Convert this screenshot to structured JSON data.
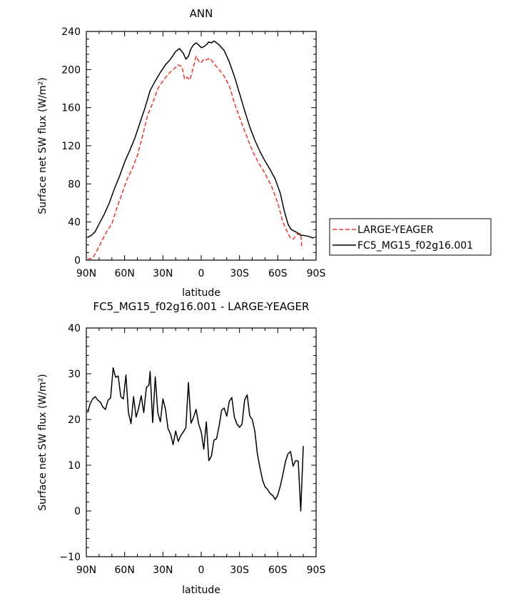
{
  "chart_data": [
    {
      "type": "line",
      "title": "ANN",
      "xlabel": "latitude",
      "ylabel": "Surface net SW flux (W/m²)",
      "xlim": [
        90,
        -90
      ],
      "ylim": [
        0,
        240
      ],
      "x_ticks": [
        90,
        60,
        30,
        0,
        -30,
        -60,
        -90
      ],
      "x_tick_labels": [
        "90N",
        "60N",
        "30N",
        "0",
        "30S",
        "60S",
        "90S"
      ],
      "y_ticks": [
        0,
        40,
        80,
        120,
        160,
        200,
        240
      ],
      "y_tick_labels": [
        "0",
        "40",
        "80",
        "120",
        "160",
        "200",
        "240"
      ],
      "legend_position": "right",
      "series": [
        {
          "name": "LARGE-YEAGER",
          "color": "#e8352b",
          "dash": "dashed",
          "x": [
            89,
            85,
            82,
            78,
            74,
            70,
            66,
            62,
            58,
            54,
            50,
            46,
            42,
            38,
            34,
            30,
            26,
            22,
            18,
            15,
            13,
            11,
            9,
            7,
            4,
            2,
            0,
            -2,
            -4,
            -7,
            -10,
            -14,
            -18,
            -22,
            -26,
            -30,
            -35,
            -40,
            -45,
            -50,
            -55,
            -60,
            -64,
            -68,
            -70,
            -72,
            -75,
            -78,
            -79
          ],
          "values": [
            1,
            2,
            9,
            20,
            30,
            38,
            55,
            70,
            85,
            96,
            110,
            130,
            152,
            165,
            180,
            188,
            195,
            200,
            205,
            203,
            190,
            192,
            189,
            198,
            214,
            209,
            207,
            211,
            210,
            212,
            206,
            200,
            193,
            183,
            165,
            150,
            132,
            115,
            102,
            91,
            78,
            60,
            40,
            28,
            23,
            22,
            27,
            28,
            12
          ]
        },
        {
          "name": "FC5_MG15_f02g16.001",
          "color": "#000000",
          "dash": "solid",
          "x": [
            89,
            86,
            83,
            80,
            76,
            72,
            68,
            64,
            60,
            56,
            52,
            48,
            44,
            40,
            36,
            32,
            28,
            24,
            20,
            17,
            14,
            12,
            10,
            8,
            6,
            4,
            2,
            0,
            -2,
            -4,
            -6,
            -8,
            -10,
            -12,
            -14,
            -18,
            -22,
            -26,
            -30,
            -34,
            -38,
            -42,
            -46,
            -50,
            -54,
            -58,
            -62,
            -65,
            -68,
            -70,
            -72,
            -75,
            -78,
            -80,
            -84,
            -88
          ],
          "values": [
            24,
            26,
            30,
            38,
            48,
            60,
            75,
            88,
            103,
            115,
            128,
            144,
            160,
            178,
            188,
            197,
            205,
            211,
            219,
            222,
            217,
            211,
            214,
            222,
            226,
            228,
            226,
            223,
            224,
            226,
            229,
            228,
            230,
            228,
            226,
            220,
            208,
            193,
            175,
            157,
            140,
            126,
            114,
            104,
            95,
            85,
            70,
            52,
            38,
            33,
            31,
            29,
            26,
            26,
            25,
            23
          ]
        }
      ]
    },
    {
      "type": "line",
      "title": "FC5_MG15_f02g16.001 - LARGE-YEAGER",
      "xlabel": "latitude",
      "ylabel": "Surface net SW flux (W/m²)",
      "xlim": [
        90,
        -90
      ],
      "ylim": [
        -10,
        40
      ],
      "x_ticks": [
        90,
        60,
        30,
        0,
        -30,
        -60,
        -90
      ],
      "x_tick_labels": [
        "90N",
        "60N",
        "30N",
        "0",
        "30S",
        "60S",
        "90S"
      ],
      "y_ticks": [
        -10,
        0,
        10,
        20,
        30,
        40
      ],
      "y_tick_labels": [
        "−10",
        "0",
        "10",
        "20",
        "30",
        "40"
      ],
      "series": [
        {
          "name": "FC5_MG15_f02g16.001 - LARGE-YEAGER",
          "color": "#000000",
          "dash": "solid",
          "x": [
            89,
            87,
            85,
            83,
            81,
            79,
            77,
            75,
            73,
            71,
            69,
            67,
            65,
            63,
            61,
            59,
            57,
            55,
            53,
            51,
            49,
            47,
            45,
            43,
            41,
            40,
            38,
            36,
            34,
            32,
            30,
            28,
            26,
            24,
            22,
            20,
            18,
            16,
            14,
            12,
            10,
            8,
            6,
            4,
            2,
            0,
            -2,
            -4,
            -6,
            -8,
            -10,
            -12,
            -14,
            -16,
            -18,
            -20,
            -22,
            -24,
            -26,
            -28,
            -30,
            -32,
            -34,
            -36,
            -38,
            -40,
            -42,
            -44,
            -46,
            -48,
            -50,
            -52,
            -54,
            -56,
            -58,
            -60,
            -62,
            -64,
            -66,
            -68,
            -70,
            -72,
            -74,
            -76,
            -78,
            -80
          ],
          "values": [
            21.5,
            23.5,
            24.5,
            25,
            24.2,
            23.8,
            22.7,
            22.2,
            24.2,
            24.7,
            31.3,
            29.2,
            29.5,
            25,
            24.5,
            29.7,
            21.5,
            19.1,
            25,
            20.5,
            22.5,
            25.2,
            21.5,
            27,
            27.5,
            30.5,
            19.3,
            29.3,
            21.5,
            19.5,
            24.5,
            22.3,
            18,
            16.8,
            14.5,
            17.5,
            15.2,
            16.5,
            17.3,
            18.2,
            28.1,
            19.2,
            20.5,
            22.2,
            19,
            17.3,
            13.5,
            19.5,
            11,
            12,
            15.5,
            15.8,
            18.5,
            22,
            22.5,
            20.7,
            24,
            24.8,
            20.5,
            19,
            18.3,
            19,
            24.2,
            25.4,
            20.8,
            20,
            17.5,
            12.5,
            9.5,
            6.8,
            5.3,
            4.7,
            3.8,
            3.4,
            2.5,
            3.5,
            5.5,
            8,
            10.8,
            12.5,
            13,
            9.8,
            11,
            10.9,
            0,
            14.2
          ]
        }
      ]
    }
  ]
}
